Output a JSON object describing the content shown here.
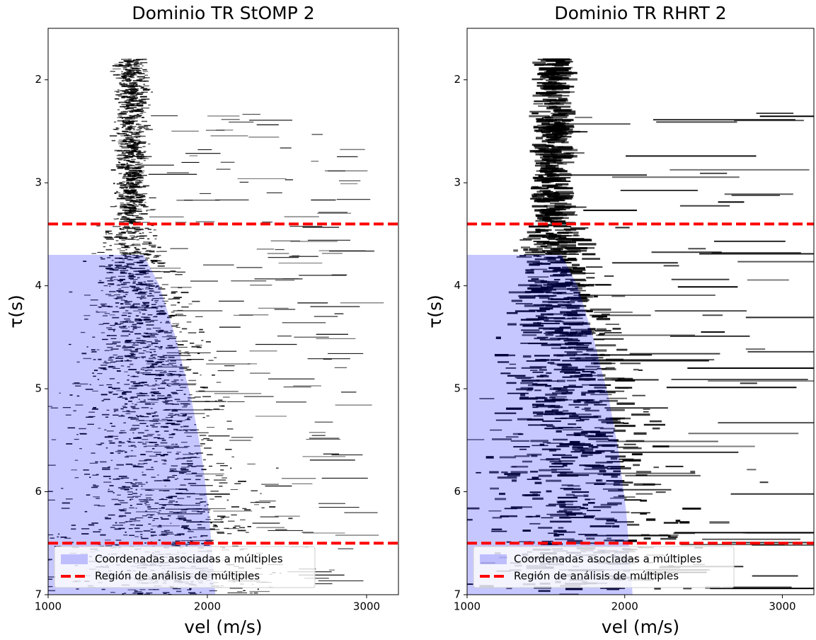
{
  "chart_data": [
    {
      "type": "seismic",
      "title": "Dominio TR StOMP 2",
      "xlabel": "vel (m/s)",
      "ylabel": "τ(s)",
      "xlim": [
        1000,
        3200
      ],
      "ylim": [
        7,
        1.5
      ],
      "xticks": [
        1000,
        2000,
        3000
      ],
      "yticks": [
        2,
        3,
        4,
        5,
        6,
        7
      ],
      "region": {
        "name": "Coordenadas asociadas a múltiples",
        "color": "#0000ff",
        "x": [
          1000,
          1600,
          1700,
          1800,
          1900,
          1960,
          2010,
          2050,
          1000
        ],
        "y": [
          3.7,
          3.7,
          4.0,
          4.5,
          5.1,
          5.6,
          6.2,
          7,
          7
        ]
      },
      "hlines": {
        "name": "Región de análisis de múltiples",
        "color": "#ff0000",
        "values": [
          3.4,
          6.5
        ]
      },
      "legend": "lower left"
    },
    {
      "type": "seismic",
      "title": "Dominio TR RHRT 2",
      "xlabel": "vel (m/s)",
      "ylabel": "τ(s)",
      "xlim": [
        1000,
        3200
      ],
      "ylim": [
        7,
        1.5
      ],
      "xticks": [
        1000,
        2000,
        3000
      ],
      "yticks": [
        2,
        3,
        4,
        5,
        6,
        7
      ],
      "region": {
        "name": "Coordenadas asociadas a múltiples",
        "color": "#0000ff",
        "x": [
          1000,
          1600,
          1700,
          1800,
          1900,
          1960,
          2010,
          2050,
          1000
        ],
        "y": [
          3.7,
          3.7,
          4.0,
          4.5,
          5.1,
          5.6,
          6.2,
          7,
          7
        ]
      },
      "hlines": {
        "name": "Región de análisis de múltiples",
        "color": "#ff0000",
        "values": [
          3.4,
          6.5
        ]
      },
      "legend": "lower left"
    }
  ]
}
